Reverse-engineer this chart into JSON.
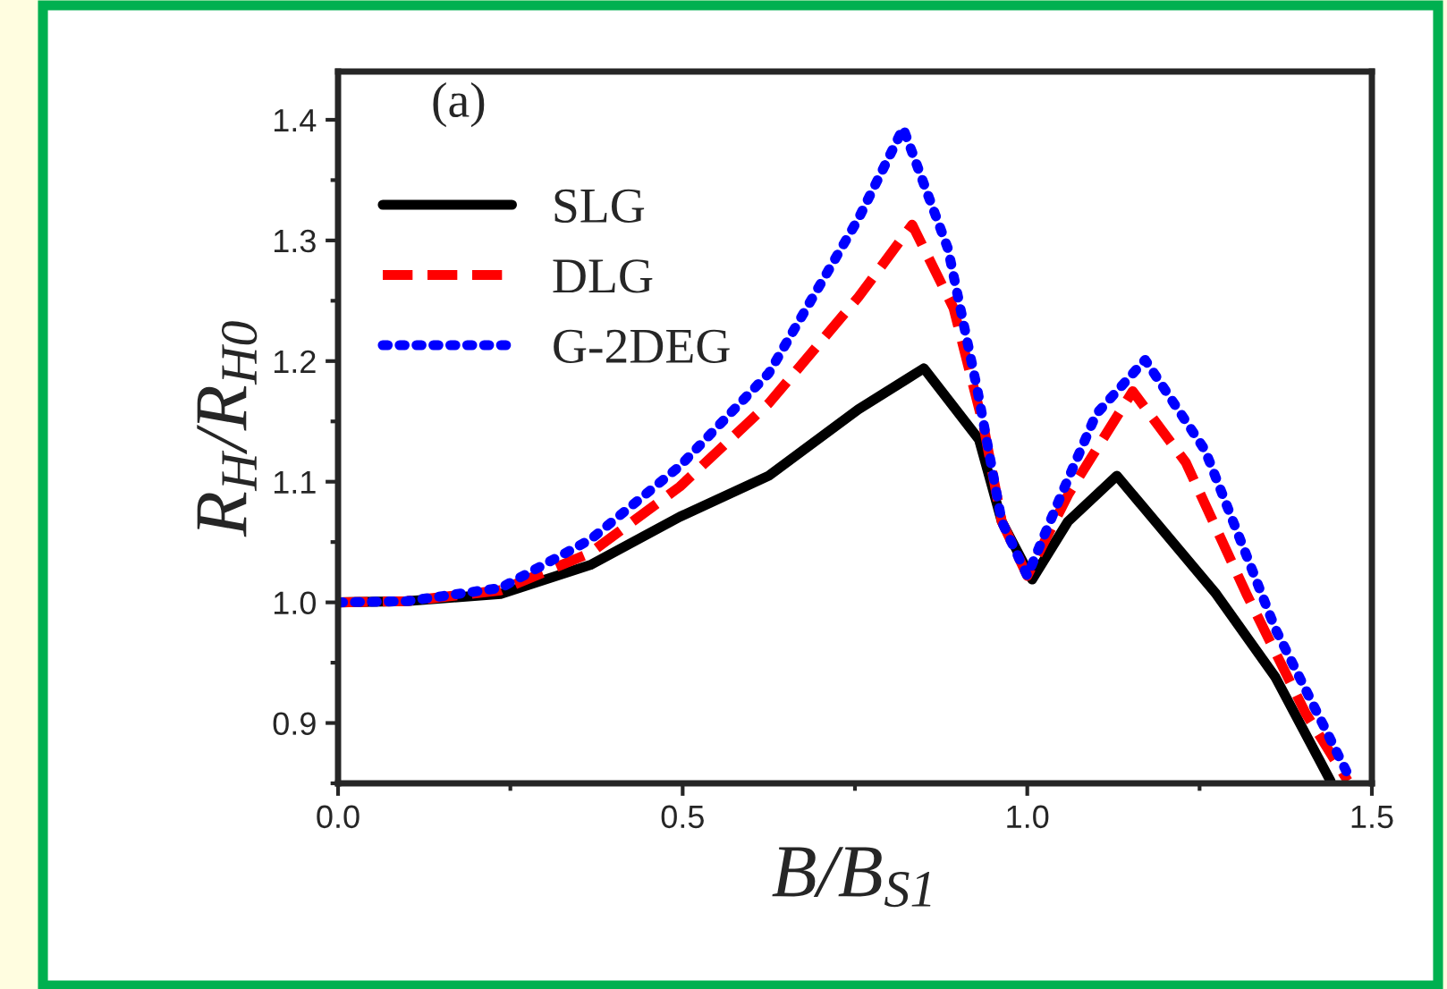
{
  "chart_data": {
    "type": "line",
    "xlabel": "B/B$_{S1}$",
    "ylabel": "R$_{H}$/R$_{H0}$",
    "annotations": [
      "(a)"
    ],
    "xlim": [
      0.0,
      1.5
    ],
    "xticks": [
      {
        "value": 0,
        "label": "0.0"
      },
      0.5,
      {
        "value": 1,
        "label": "1.0"
      },
      1.5
    ],
    "ylim": [
      0.85,
      1.44
    ],
    "yticks": [
      0.9,
      {
        "value": 1,
        "label": "1.0"
      },
      1.1,
      1.2,
      1.3,
      1.4
    ],
    "legend": "top left",
    "grid": false,
    "marker": "none",
    "series": [
      {
        "name": "SLG",
        "color": "#000000",
        "line_style": "solid",
        "x": [
          0,
          0.1,
          0.236,
          0.366,
          0.496,
          0.625,
          0.755,
          0.85,
          0.93,
          0.963,
          1.007,
          1.059,
          1.13,
          1.274,
          1.36,
          1.44
        ],
        "values": [
          1.0,
          1.001,
          1.007,
          1.031,
          1.071,
          1.105,
          1.16,
          1.194,
          1.135,
          1.067,
          1.019,
          1.067,
          1.105,
          1.007,
          0.938,
          0.852
        ]
      },
      {
        "name": "DLG",
        "color": "#ff0000",
        "line_style": "dashed",
        "x": [
          0,
          0.1,
          0.236,
          0.366,
          0.496,
          0.625,
          0.755,
          0.833,
          0.893,
          0.937,
          0.963,
          1.0,
          1.06,
          1.153,
          1.23,
          1.318,
          1.404,
          1.465
        ],
        "values": [
          1.0,
          1.001,
          1.01,
          1.041,
          1.096,
          1.165,
          1.253,
          1.313,
          1.244,
          1.145,
          1.067,
          1.022,
          1.09,
          1.175,
          1.116,
          1.007,
          0.908,
          0.852
        ]
      },
      {
        "name": "G-2DEG",
        "color": "#0000ff",
        "line_style": "dotted",
        "x": [
          0,
          0.1,
          0.236,
          0.366,
          0.496,
          0.625,
          0.755,
          0.82,
          0.885,
          0.928,
          0.963,
          1.0,
          1.05,
          1.1,
          1.171,
          1.258,
          1.36,
          1.469
        ],
        "values": [
          1.0,
          1.001,
          1.012,
          1.052,
          1.113,
          1.19,
          1.318,
          1.393,
          1.293,
          1.175,
          1.067,
          1.022,
          1.09,
          1.156,
          1.201,
          1.126,
          0.978,
          0.853
        ]
      }
    ]
  }
}
